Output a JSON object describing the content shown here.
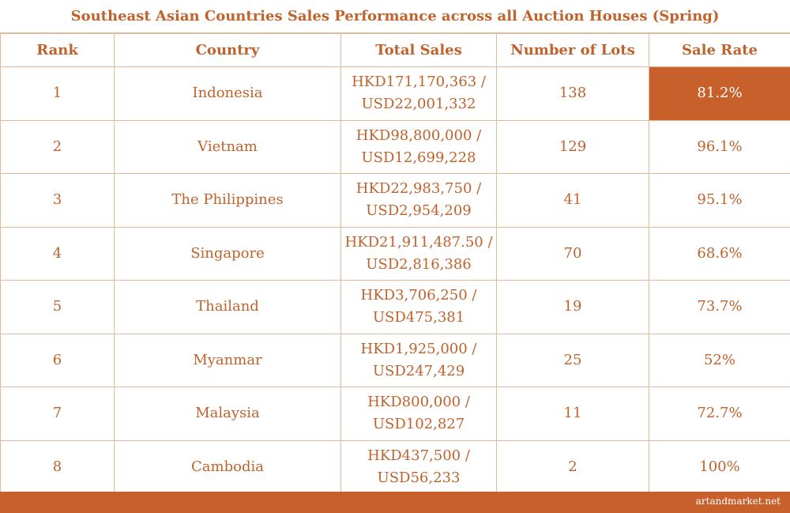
{
  "chart_data": {
    "type": "table",
    "title": "Southeast Asian Countries Sales Performance across all Auction Houses (Spring)",
    "columns": [
      "Rank",
      "Country",
      "Total Sales",
      "Number of Lots",
      "Sale Rate"
    ],
    "rows": [
      {
        "rank": "1",
        "country": "Indonesia",
        "sales_hkd": "HKD171,170,363 /",
        "sales_usd": "USD22,001,332",
        "lots": "138",
        "rate": "81.2%"
      },
      {
        "rank": "2",
        "country": "Vietnam",
        "sales_hkd": "HKD98,800,000 /",
        "sales_usd": "USD12,699,228",
        "lots": "129",
        "rate": "96.1%"
      },
      {
        "rank": "3",
        "country": "The Philippines",
        "sales_hkd": "HKD22,983,750 /",
        "sales_usd": "USD2,954,209",
        "lots": "41",
        "rate": "95.1%"
      },
      {
        "rank": "4",
        "country": "Singapore",
        "sales_hkd": "HKD21,911,487.50 /",
        "sales_usd": "USD2,816,386",
        "lots": "70",
        "rate": "68.6%"
      },
      {
        "rank": "5",
        "country": "Thailand",
        "sales_hkd": "HKD3,706,250 /",
        "sales_usd": "USD475,381",
        "lots": "19",
        "rate": "73.7%"
      },
      {
        "rank": "6",
        "country": "Myanmar",
        "sales_hkd": "HKD1,925,000 /",
        "sales_usd": "USD247,429",
        "lots": "25",
        "rate": "52%"
      },
      {
        "rank": "7",
        "country": "Malaysia",
        "sales_hkd": "HKD800,000 /",
        "sales_usd": "USD102,827",
        "lots": "11",
        "rate": "72.7%"
      },
      {
        "rank": "8",
        "country": "Cambodia",
        "sales_hkd": "HKD437,500 /",
        "sales_usd": "USD56,233",
        "lots": "2",
        "rate": "100%"
      }
    ],
    "highlight": {
      "row": 0,
      "column": "rate",
      "color": "#c8602c"
    }
  },
  "footer": {
    "credit": "artandmarket.net"
  },
  "colors": {
    "accent": "#c8602c",
    "text": "#c0622c",
    "border": "#e3b99d"
  }
}
